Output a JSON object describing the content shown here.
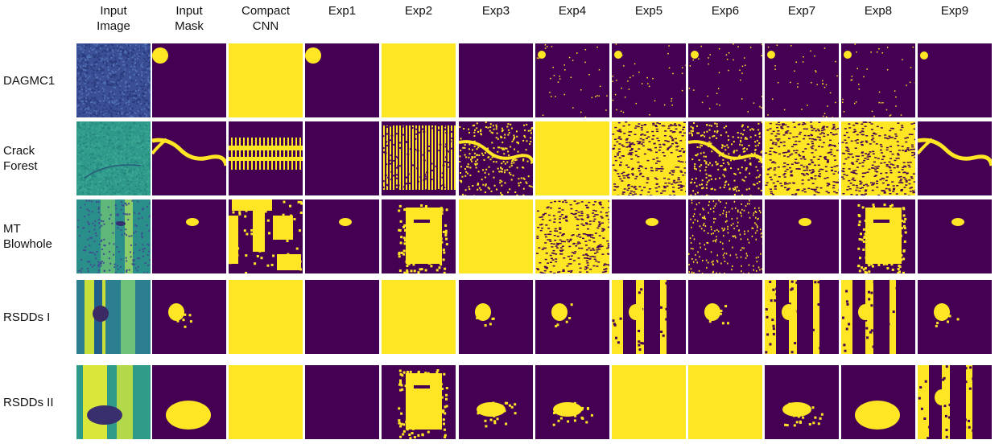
{
  "colors": {
    "background": "#440154",
    "foreground": "#fde725"
  },
  "columns": [
    "Input\nImage",
    "Input\nMask",
    "Compact\nCNN",
    "Exp1",
    "Exp2",
    "Exp3",
    "Exp4",
    "Exp5",
    "Exp6",
    "Exp7",
    "Exp8",
    "Exp9"
  ],
  "rows": [
    {
      "label": "DAGMC1",
      "cells": [
        "texture-dark",
        "spot-top-left",
        "full",
        "spot-top-left",
        "full",
        "empty",
        "spot-sparse",
        "spot-sparse",
        "spot-sparse",
        "spot-sparse",
        "spot-sparse",
        "spot-small"
      ]
    },
    {
      "label": "Crack\nForest",
      "cells": [
        "texture-crack",
        "crack",
        "stripes",
        "empty",
        "stripes-dense",
        "crack-noisy",
        "full",
        "noise-dense",
        "crack-noisy",
        "noise-dense",
        "noise-dense",
        "crack"
      ]
    },
    {
      "label": "MT\nBlowhole",
      "cells": [
        "texture-green",
        "blob-small",
        "patchy",
        "blob-small",
        "patchy-center",
        "full",
        "noise-dense",
        "blob-small",
        "noise-sparse",
        "blob-small",
        "patchy-center",
        "blob-small"
      ]
    },
    {
      "label": "RSDDs I",
      "cells": [
        "texture-rail",
        "blob-mid",
        "full",
        "empty",
        "full",
        "blob-mid",
        "blob-mid",
        "rail-stripes",
        "blob-mid",
        "rail-stripes",
        "rail-stripes",
        "blob-mid"
      ]
    },
    {
      "label": "RSDDs II",
      "cells": [
        "texture-rail2",
        "blob-large",
        "full",
        "empty",
        "patchy-center",
        "blob-low",
        "blob-low",
        "full",
        "full",
        "blob-low",
        "blob-large",
        "rail-stripes"
      ]
    }
  ]
}
